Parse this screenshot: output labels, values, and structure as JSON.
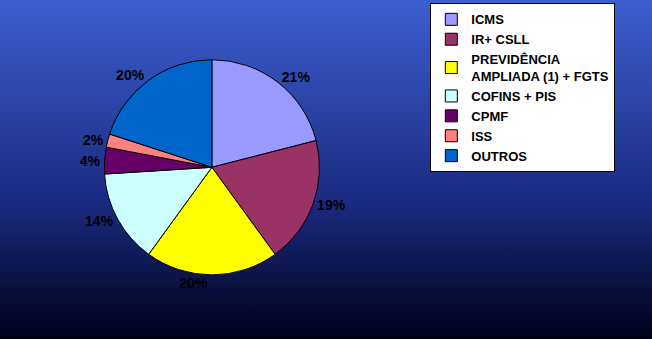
{
  "chart_data": {
    "type": "pie",
    "categories": [
      "ICMS",
      "IR+ CSLL",
      "PREVIDÊNCIA AMPLIADA (1) + FGTS",
      "COFINS + PIS",
      "CPMF",
      "ISS",
      "OUTROS"
    ],
    "values": [
      21,
      19,
      20,
      14,
      4,
      2,
      20
    ],
    "value_labels": [
      "21%",
      "19%",
      "20%",
      "14%",
      "4%",
      "2%",
      "20%"
    ],
    "colors": [
      "#9999ff",
      "#993366",
      "#ffff00",
      "#ccffff",
      "#660066",
      "#ff8080",
      "#0066cc"
    ],
    "legend": "upper right",
    "data_labels": true
  }
}
